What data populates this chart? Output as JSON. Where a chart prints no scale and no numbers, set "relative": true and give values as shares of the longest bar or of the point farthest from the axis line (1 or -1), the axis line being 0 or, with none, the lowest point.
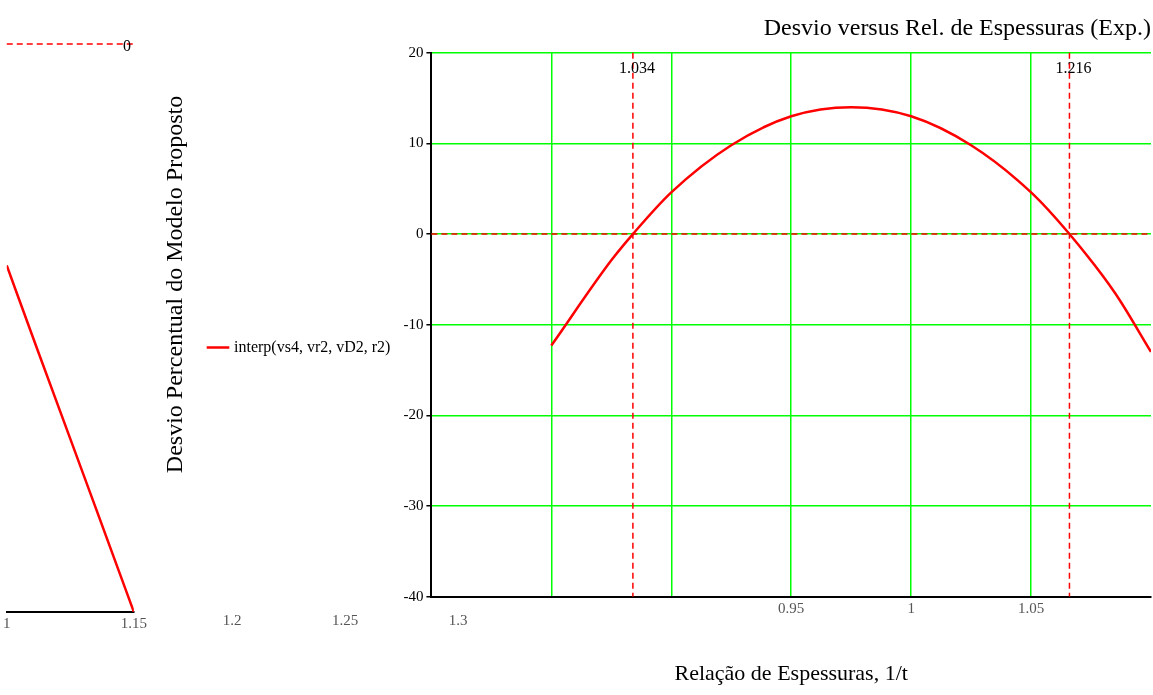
{
  "chart_data": [
    {
      "type": "line",
      "x": [
        1.105,
        1.116,
        1.136,
        1.15
      ],
      "relative": true,
      "series": [
        {
          "color": "#ff0000",
          "values": [
            -0.39,
            -0.54,
            -0.81,
            -1
          ]
        }
      ],
      "xlim": [
        1.105,
        1.15
      ],
      "xticks": [
        {
          "value": 1.105,
          "label": "1"
        },
        1.15
      ],
      "ref_lines": [
        {
          "axis": "y",
          "value": 0,
          "label": "0",
          "color": "#ff0000",
          "line_style": "dashed"
        }
      ],
      "annotations": [
        "1.2",
        "1.25",
        "1.3"
      ],
      "marker": "none"
    },
    {
      "type": "line",
      "title": "Desvio versus Rel. de Espessuras (Exp.)",
      "xlabel": "Relação de Espessuras, 1/t",
      "ylabel": "Desvio Percentual do Modelo Proposto",
      "x": [
        0.85,
        0.875,
        0.884,
        0.9,
        0.925,
        0.95,
        0.975,
        1.0,
        1.025,
        1.05,
        1.066,
        1.085,
        1.1
      ],
      "series": [
        {
          "name": "interp(vs4, vr2, vD2, r2)",
          "color": "#ff0000",
          "values": [
            -12.3,
            -2.9,
            0,
            4.6,
            9.8,
            13,
            14,
            13,
            9.8,
            4.6,
            0,
            -6.5,
            -13
          ]
        }
      ],
      "xlim": [
        0.8,
        1.1
      ],
      "xticks": [
        {
          "value": 0.85,
          "label": null
        },
        {
          "value": 0.9,
          "label": null
        },
        0.95,
        1,
        1.05
      ],
      "ylim": [
        -40,
        20
      ],
      "yticks": [
        -40,
        -30,
        -20,
        -10,
        0,
        10,
        20
      ],
      "grid": true,
      "legend": "left",
      "marker": "none",
      "annotations": [
        "1.034",
        "1.216"
      ],
      "ref_lines": [
        {
          "axis": "x",
          "value": 0.884,
          "color": "#ff0000",
          "line_style": "dashed"
        },
        {
          "axis": "x",
          "value": 1.066,
          "color": "#ff0000",
          "line_style": "dashed"
        },
        {
          "axis": "y",
          "value": 0,
          "color": "#ff0000",
          "line_style": "dashed"
        }
      ]
    }
  ]
}
